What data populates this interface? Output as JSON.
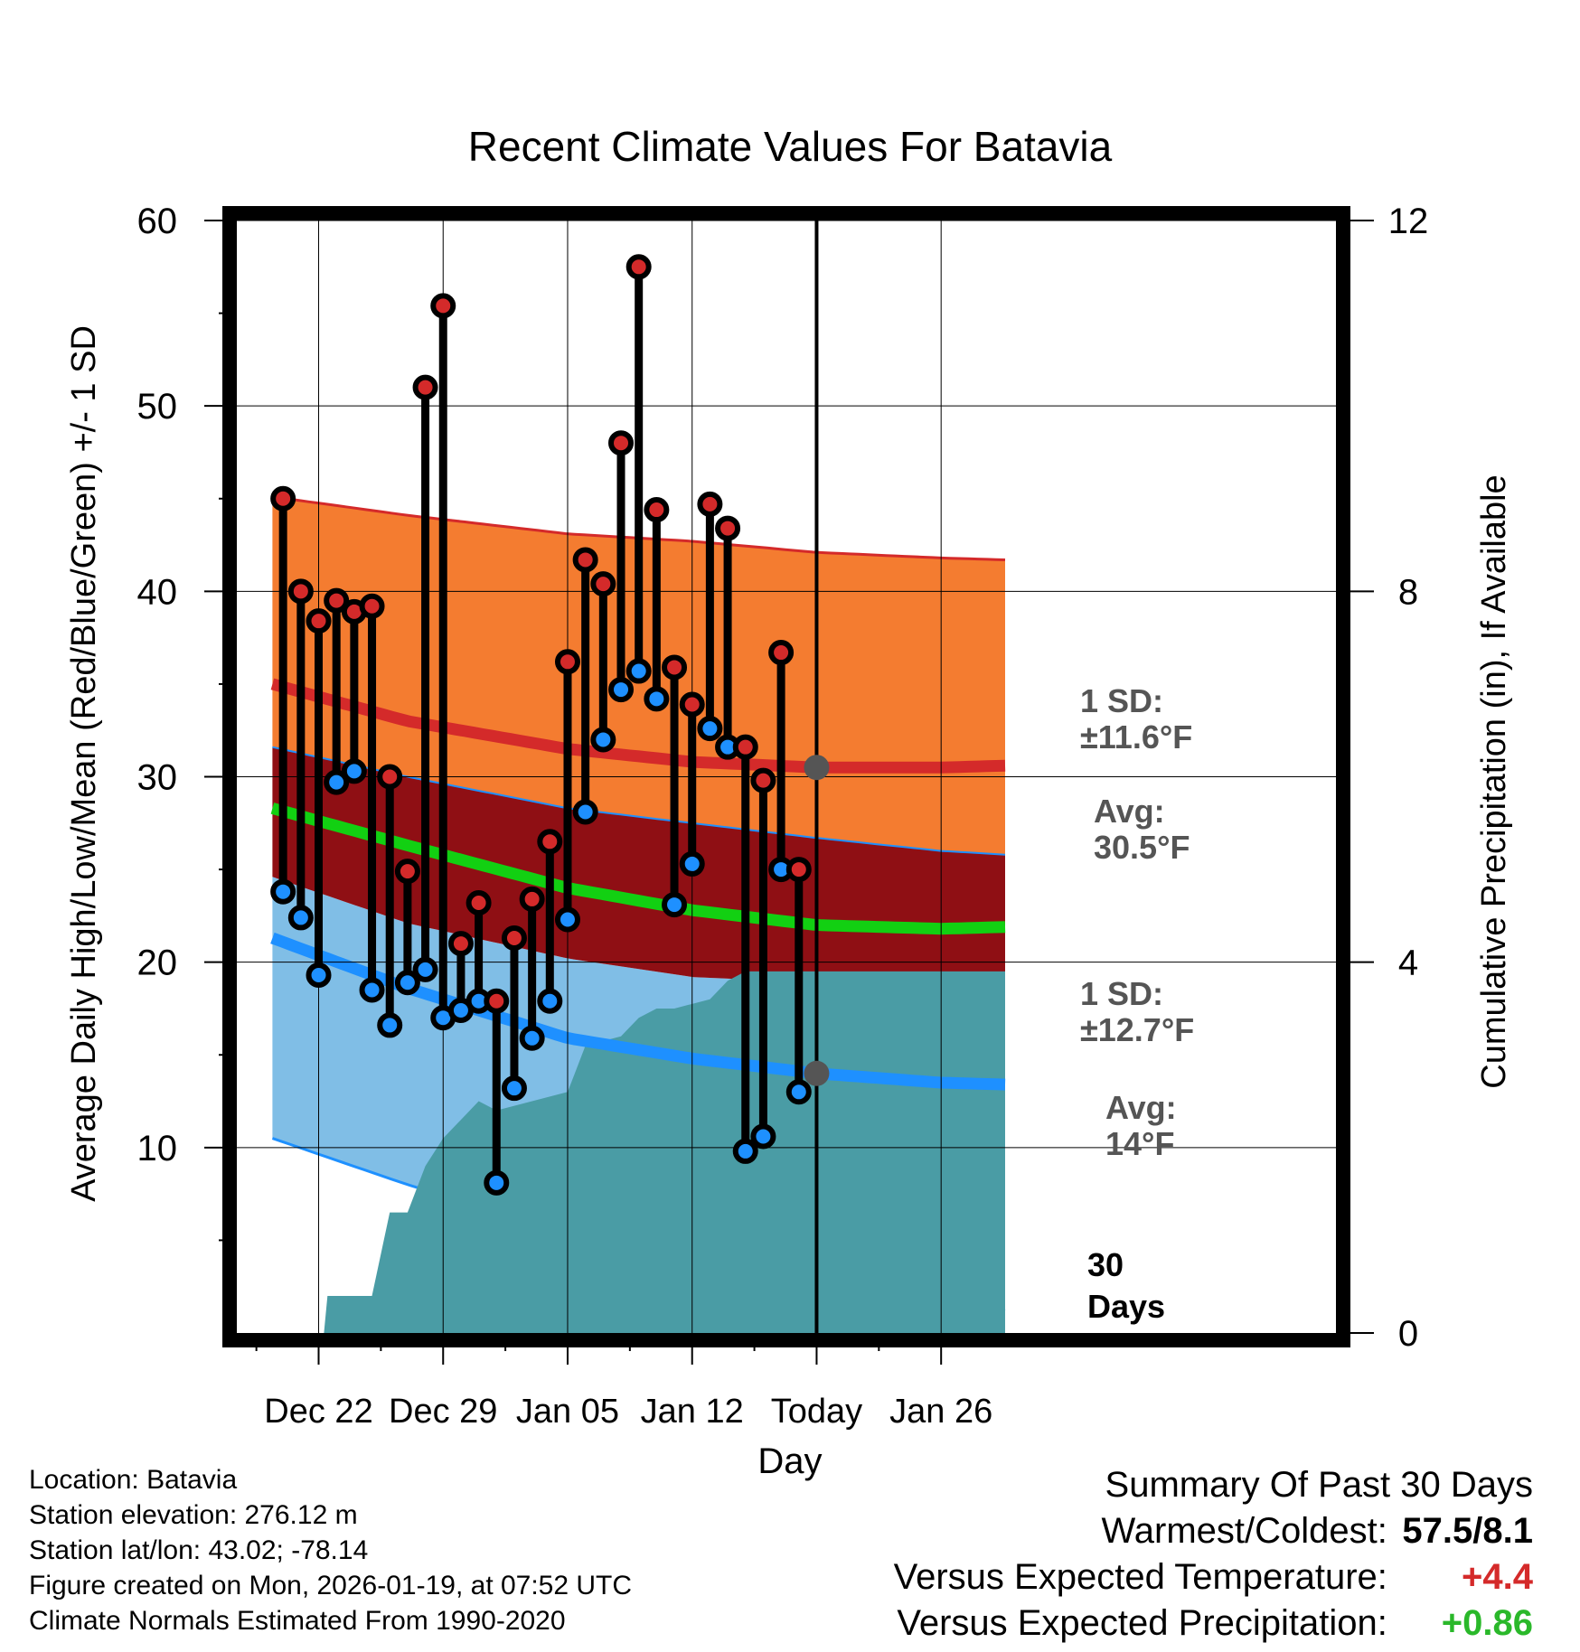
{
  "chart_data": {
    "type": "line",
    "title": "Recent Climate Values For Batavia",
    "xlabel": "Day",
    "ylabel": "Average Daily High/Low/Mean (Red/Blue/Green) +/- 1 SD",
    "y2label": "Cumulative Precipitation (in), If Available",
    "ylim": [
      0,
      60
    ],
    "y2lim": [
      0,
      12
    ],
    "xlim": [
      -4.6,
      57.2
    ],
    "yticks": [
      "10",
      "20",
      "30",
      "40",
      "50",
      "60"
    ],
    "y2ticks": [
      "0",
      "4",
      "8",
      "12"
    ],
    "xticks": [
      {
        "day": 0,
        "label": "Dec 22"
      },
      {
        "day": 7,
        "label": "Dec 29"
      },
      {
        "day": 14,
        "label": "Jan 05"
      },
      {
        "day": 21,
        "label": "Jan 12"
      },
      {
        "day": 28,
        "label": "Today"
      },
      {
        "day": 35,
        "label": "Jan 26"
      }
    ],
    "today_day": 28,
    "days_label": "30 Days",
    "normals": {
      "days": [
        -2.6,
        5,
        14,
        21,
        28,
        35,
        38.6
      ],
      "high_plus_sd": [
        45.1,
        44.1,
        43.1,
        42.7,
        42.1,
        41.8,
        41.7
      ],
      "high_avg": [
        35.0,
        33.0,
        31.5,
        30.8,
        30.5,
        30.5,
        30.6
      ],
      "mean_plus_sd": [
        31.6,
        30.0,
        28.3,
        27.5,
        26.7,
        26.0,
        25.8
      ],
      "mean_avg": [
        28.3,
        26.3,
        24.0,
        22.8,
        22.0,
        21.8,
        21.9
      ],
      "low_plus_sd": [
        24.6,
        22.1,
        20.2,
        19.2,
        18.9,
        19.1,
        19.3
      ],
      "low_avg": [
        21.3,
        18.6,
        15.9,
        14.8,
        14.0,
        13.5,
        13.4
      ],
      "low_minus_sd": [
        10.5,
        8.0,
        5.4,
        4.0,
        2.7,
        1.6,
        1.2
      ]
    },
    "precipitation": {
      "days": [
        -2.6,
        0.3,
        0.5,
        3.0,
        4.0,
        5.0,
        6.0,
        7.0,
        8.0,
        9.0,
        10.0,
        14.0,
        15.0,
        17.0,
        18.0,
        19.0,
        20.0,
        22.0,
        23.0,
        24.0,
        38.6
      ],
      "values": [
        0,
        0,
        0.4,
        0.4,
        1.3,
        1.3,
        1.8,
        2.1,
        2.3,
        2.5,
        2.4,
        2.6,
        3.1,
        3.2,
        3.4,
        3.5,
        3.5,
        3.6,
        3.8,
        3.9,
        3.9
      ]
    },
    "series": [
      {
        "name": "Daily High",
        "color": "#d42a2a",
        "days": [
          -2,
          -1,
          0,
          1,
          2,
          3,
          4,
          5,
          6,
          7,
          8,
          9,
          10,
          11,
          12,
          13,
          14,
          15,
          16,
          17,
          18,
          19,
          20,
          21,
          22,
          23,
          24,
          25,
          26,
          27
        ],
        "values": [
          45.0,
          40.0,
          38.4,
          39.5,
          38.9,
          39.2,
          30.0,
          24.9,
          51.0,
          55.4,
          21.0,
          23.2,
          17.9,
          21.3,
          23.4,
          26.5,
          36.2,
          41.7,
          40.4,
          48.0,
          57.5,
          44.4,
          35.9,
          33.9,
          44.7,
          43.4,
          31.6,
          29.8,
          36.7,
          25.0
        ]
      },
      {
        "name": "Daily Low",
        "color": "#1e90ff",
        "days": [
          -2,
          -1,
          0,
          1,
          2,
          3,
          4,
          5,
          6,
          7,
          8,
          9,
          10,
          11,
          12,
          13,
          14,
          15,
          16,
          17,
          18,
          19,
          20,
          21,
          22,
          23,
          24,
          25,
          26,
          27
        ],
        "values": [
          23.8,
          22.4,
          19.3,
          29.7,
          30.3,
          18.5,
          16.6,
          18.9,
          19.6,
          17.0,
          17.4,
          17.9,
          8.1,
          13.2,
          15.9,
          17.9,
          22.3,
          28.1,
          32.0,
          34.7,
          35.7,
          34.2,
          23.1,
          25.3,
          32.6,
          31.6,
          9.8,
          10.6,
          25.0,
          13.0
        ]
      }
    ],
    "annotations": [
      {
        "text_lines": [
          "1 SD:",
          "±11.6°F"
        ]
      },
      {
        "text_lines": [
          "Avg:",
          "30.5°F"
        ],
        "marker_value": 30.5
      },
      {
        "text_lines": [
          "1 SD:",
          "±12.7°F"
        ]
      },
      {
        "text_lines": [
          "Avg:",
          "14°F"
        ],
        "marker_value": 14
      }
    ],
    "colors": {
      "high_band": "#f47c30",
      "high_line": "#d42a2a",
      "mean_band": "#8f0f14",
      "mean_line": "#12d012",
      "low_band": "#80bee6",
      "low_line": "#1e90ff",
      "precip": "#4a9ca5",
      "annotation": "#555555"
    }
  },
  "info": {
    "location": "Location: Batavia",
    "elevation": "Station elevation: 276.12 m",
    "latlon": "Station lat/lon: 43.02; -78.14",
    "created": "Figure created on Mon, 2026-01-19, at 07:52 UTC",
    "normals": "Climate Normals Estimated From 1990-2020"
  },
  "summary": {
    "title": "Summary Of Past 30 Days",
    "warmest_label": "Warmest/Coldest:",
    "warmest_value": "57.5/8.1",
    "temp_label": "Versus Expected Temperature:",
    "temp_value": "+4.4",
    "temp_color": "#d42a2a",
    "precip_label": "Versus Expected Precipitation:",
    "precip_value": "+0.86",
    "precip_color": "#2ab82a"
  }
}
